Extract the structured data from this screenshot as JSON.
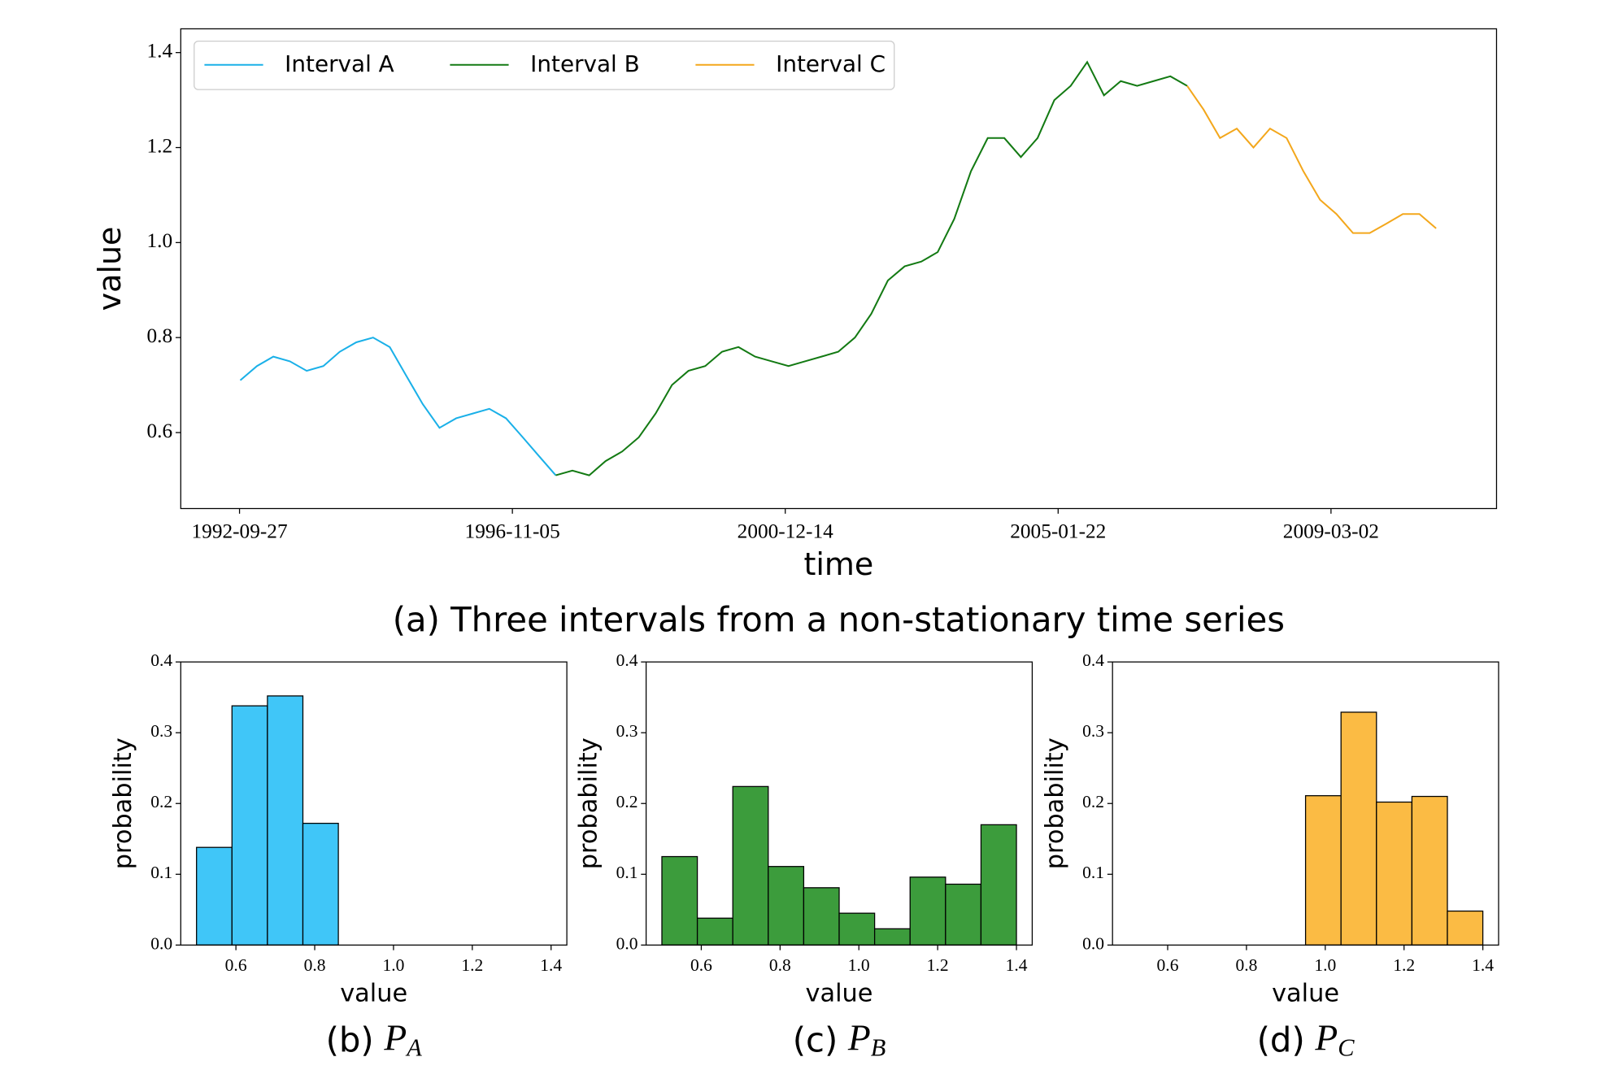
{
  "chart_data": [
    {
      "type": "line",
      "xlabel": "time",
      "ylabel": "value",
      "caption": "(a) Three intervals from a non-stationary time series",
      "legend": "upper left",
      "xlim": [
        "1991-11-09",
        "2011-08-29"
      ],
      "xticks": [
        "1992-09-27",
        "1996-11-05",
        "2000-12-14",
        "2005-01-22",
        "2009-03-02"
      ],
      "ylim": [
        0.44,
        1.45
      ],
      "yticks": [
        0.6,
        0.8,
        {
          "value": 1,
          "label": "1.0"
        },
        1.2,
        1.4
      ],
      "x": [
        "1992-10-01",
        "1993-01-01",
        "1993-04-01",
        "1993-07-01",
        "1993-10-01",
        "1994-01-01",
        "1994-04-01",
        "1994-07-01",
        "1994-10-01",
        "1995-01-01",
        "1995-04-01",
        "1995-07-01",
        "1995-10-01",
        "1996-01-01",
        "1996-04-01",
        "1996-07-01",
        "1996-10-01",
        "1997-01-01",
        "1997-04-01",
        "1997-07-01",
        "1997-10-01",
        "1998-01-01",
        "1998-04-01",
        "1998-07-01",
        "1998-10-01",
        "1999-01-01",
        "1999-04-01",
        "1999-07-01",
        "1999-10-01",
        "2000-01-01",
        "2000-04-01",
        "2000-07-01",
        "2000-10-01",
        "2001-01-01",
        "2001-04-01",
        "2001-07-01",
        "2001-10-01",
        "2002-01-01",
        "2002-04-01",
        "2002-07-01",
        "2002-10-01",
        "2003-01-01",
        "2003-04-01",
        "2003-07-01",
        "2003-10-01",
        "2004-01-01",
        "2004-04-01",
        "2004-07-01",
        "2004-10-01",
        "2005-01-01",
        "2005-04-01",
        "2005-07-01",
        "2005-10-01",
        "2006-01-01",
        "2006-04-01",
        "2006-07-01",
        "2006-10-01",
        "2007-01-01",
        "2007-04-01",
        "2007-07-01",
        "2007-10-01",
        "2008-01-01",
        "2008-04-01",
        "2008-07-01",
        "2008-10-01",
        "2009-01-01",
        "2009-04-01",
        "2009-07-01",
        "2009-10-01",
        "2010-01-01",
        "2010-04-01",
        "2010-07-01",
        "2010-10-01"
      ],
      "series": [
        {
          "name": "Interval A",
          "color": "#1ab0e8",
          "values": [
            0.71,
            0.74,
            0.76,
            0.75,
            0.73,
            0.74,
            0.77,
            0.79,
            0.8,
            0.78,
            0.72,
            0.66,
            0.61,
            0.63,
            0.64,
            0.65,
            0.63,
            0.59,
            0.55,
            0.51,
            null,
            null,
            null,
            null,
            null,
            null,
            null,
            null,
            null,
            null,
            null,
            null,
            null,
            null,
            null,
            null,
            null,
            null,
            null,
            null,
            null,
            null,
            null,
            null,
            null,
            null,
            null,
            null,
            null,
            null,
            null,
            null,
            null,
            null,
            null,
            null,
            null,
            null,
            null,
            null,
            null,
            null,
            null,
            null,
            null,
            null,
            null,
            null,
            null,
            null,
            null,
            null,
            null
          ]
        },
        {
          "name": "Interval B",
          "color": "#137a13",
          "values": [
            null,
            null,
            null,
            null,
            null,
            null,
            null,
            null,
            null,
            null,
            null,
            null,
            null,
            null,
            null,
            null,
            null,
            null,
            null,
            0.51,
            0.52,
            0.51,
            0.54,
            0.56,
            0.59,
            0.64,
            0.7,
            0.73,
            0.74,
            0.77,
            0.78,
            0.76,
            0.75,
            0.74,
            0.75,
            0.76,
            0.77,
            0.8,
            0.85,
            0.92,
            0.95,
            0.96,
            0.98,
            1.05,
            1.15,
            1.22,
            1.22,
            1.18,
            1.22,
            1.3,
            1.33,
            1.38,
            1.31,
            1.34,
            1.33,
            1.34,
            1.35,
            1.33,
            null,
            null,
            null,
            null,
            null,
            null,
            null,
            null,
            null,
            null,
            null,
            null,
            null,
            null,
            null
          ]
        },
        {
          "name": "Interval C",
          "color": "#f3a71c",
          "values": [
            null,
            null,
            null,
            null,
            null,
            null,
            null,
            null,
            null,
            null,
            null,
            null,
            null,
            null,
            null,
            null,
            null,
            null,
            null,
            null,
            null,
            null,
            null,
            null,
            null,
            null,
            null,
            null,
            null,
            null,
            null,
            null,
            null,
            null,
            null,
            null,
            null,
            null,
            null,
            null,
            null,
            null,
            null,
            null,
            null,
            null,
            null,
            null,
            null,
            null,
            null,
            null,
            null,
            null,
            null,
            null,
            null,
            1.33,
            1.28,
            1.22,
            1.24,
            1.2,
            1.24,
            1.22,
            1.15,
            1.09,
            1.06,
            1.02,
            1.02,
            1.04,
            1.06,
            1.06,
            1.03
          ]
        }
      ]
    },
    {
      "type": "histogram",
      "xlabel": "value",
      "ylabel": "probability",
      "caption": "(b)",
      "symbol": "P",
      "subscript": "A",
      "color": "#40c6f8",
      "edgecolor": "#000000",
      "bins": [
        0.5,
        0.59,
        0.68,
        0.77,
        0.86,
        0.95,
        1.04,
        1.13,
        1.22,
        1.31,
        1.4
      ],
      "values": [
        0.138,
        0.338,
        0.352,
        0.172,
        0,
        0,
        0,
        0,
        0,
        0
      ],
      "xlim": [
        0.46,
        1.44
      ],
      "xticks": [
        0.6,
        0.8,
        {
          "value": 1,
          "label": "1.0"
        },
        1.2,
        1.4
      ],
      "ylim": [
        0,
        0.4
      ],
      "yticks": [
        {
          "value": 0,
          "label": "0.0"
        },
        0.1,
        0.2,
        0.3,
        0.4
      ]
    },
    {
      "type": "histogram",
      "xlabel": "value",
      "ylabel": "probability",
      "caption": "(c)",
      "symbol": "P",
      "subscript": "B",
      "color": "#3c9c3c",
      "edgecolor": "#000000",
      "bins": [
        0.5,
        0.59,
        0.68,
        0.77,
        0.86,
        0.95,
        1.04,
        1.13,
        1.22,
        1.31,
        1.4
      ],
      "values": [
        0.125,
        0.038,
        0.224,
        0.111,
        0.081,
        0.045,
        0.023,
        0.096,
        0.086,
        0.17
      ],
      "xlim": [
        0.46,
        1.44
      ],
      "xticks": [
        0.6,
        0.8,
        {
          "value": 1,
          "label": "1.0"
        },
        1.2,
        1.4
      ],
      "ylim": [
        0,
        0.4
      ],
      "yticks": [
        {
          "value": 0,
          "label": "0.0"
        },
        0.1,
        0.2,
        0.3,
        0.4
      ]
    },
    {
      "type": "histogram",
      "xlabel": "value",
      "ylabel": "probability",
      "caption": "(d)",
      "symbol": "P",
      "subscript": "C",
      "color": "#fbbb44",
      "edgecolor": "#000000",
      "bins": [
        0.5,
        0.59,
        0.68,
        0.77,
        0.86,
        0.95,
        1.04,
        1.13,
        1.22,
        1.31,
        1.4
      ],
      "values": [
        0,
        0,
        0,
        0,
        0,
        0.211,
        0.329,
        0.202,
        0.21,
        0.048
      ],
      "xlim": [
        0.46,
        1.44
      ],
      "xticks": [
        0.6,
        0.8,
        {
          "value": 1,
          "label": "1.0"
        },
        1.2,
        1.4
      ],
      "ylim": [
        0,
        0.4
      ],
      "yticks": [
        {
          "value": 0,
          "label": "0.0"
        },
        0.1,
        0.2,
        0.3,
        0.4
      ]
    }
  ]
}
